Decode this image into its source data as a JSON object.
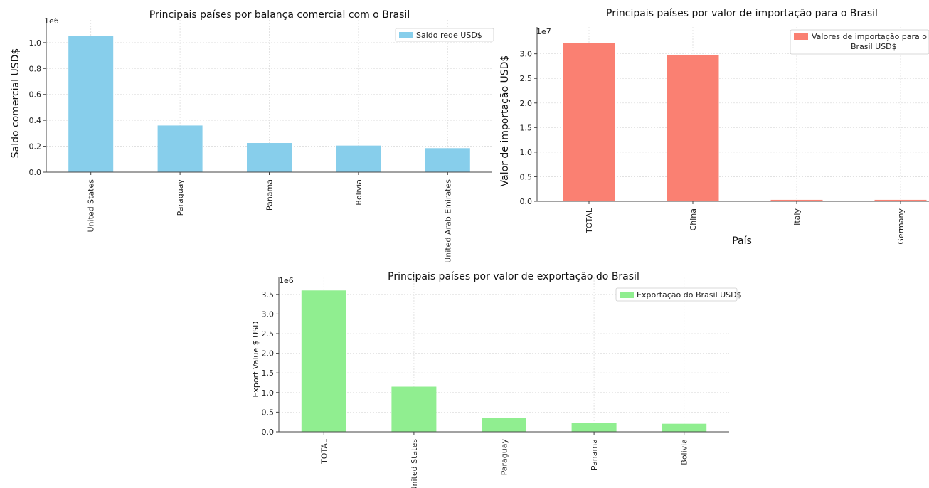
{
  "chart_data": [
    {
      "type": "bar",
      "title": "Principais países por balança comercial com o Brasil",
      "xlabel": "",
      "ylabel": "Saldo comercial USD$",
      "scale_label": "1e6",
      "categories": [
        "United States",
        "Paraguay",
        "Panama",
        "Bolivia",
        "United Arab Emirates"
      ],
      "series": [
        {
          "name": "Saldo rede USD$",
          "values": [
            1050000,
            360000,
            225000,
            205000,
            185000
          ]
        }
      ],
      "ylim": [
        0,
        1120000
      ],
      "yticks": [
        0,
        200000,
        400000,
        600000,
        800000,
        1000000
      ],
      "ytick_labels": [
        "0.0",
        "0.2",
        "0.4",
        "0.6",
        "0.8",
        "1.0"
      ],
      "color": "#87CEEB",
      "grid": true,
      "legend_position": "top-right"
    },
    {
      "type": "bar",
      "title": "Principais países por valor de importação para o Brasil",
      "xlabel": "País",
      "ylabel": "Valor de importação USD$",
      "scale_label": "1e7",
      "categories": [
        "TOTAL",
        "China",
        "Italy",
        "Germany"
      ],
      "series": [
        {
          "name": "Valores de importação para o Brasil USD$",
          "values": [
            32200000,
            29700000,
            300000,
            300000
          ]
        }
      ],
      "ylim": [
        0,
        34000000
      ],
      "yticks": [
        0,
        5000000,
        10000000,
        15000000,
        20000000,
        25000000,
        30000000
      ],
      "ytick_labels": [
        "0.0",
        "0.5",
        "1.0",
        "1.5",
        "2.0",
        "2.5",
        "3.0"
      ],
      "color": "#FA8072",
      "grid": true,
      "legend_position": "top-right",
      "legend_lines": [
        "Valores de importação para o",
        "Brasil USD$"
      ]
    },
    {
      "type": "bar",
      "title": "Principais países por valor de exportação do Brasil",
      "xlabel": "",
      "ylabel": "Export Value $ USD",
      "scale_label": "1e6",
      "categories": [
        "TOTAL",
        "United States",
        "Paraguay",
        "Panama",
        "Bolivia"
      ],
      "series": [
        {
          "name": "Exportação do Brasil USD$",
          "values": [
            3600000,
            1150000,
            360000,
            225000,
            205000
          ]
        }
      ],
      "ylim": [
        0,
        3750000
      ],
      "yticks": [
        0,
        500000,
        1000000,
        1500000,
        2000000,
        2500000,
        3000000,
        3500000
      ],
      "ytick_labels": [
        "0.0",
        "0.5",
        "1.0",
        "1.5",
        "2.0",
        "2.5",
        "3.0",
        "3.5"
      ],
      "color": "#90EE90",
      "grid": true,
      "legend_position": "top-right"
    }
  ]
}
